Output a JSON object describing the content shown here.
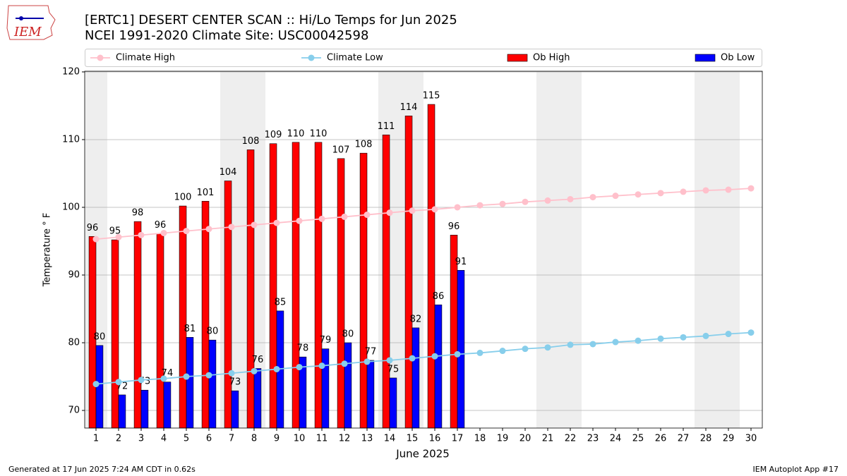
{
  "chart_data": {
    "type": "bar_line",
    "logo": "IEM",
    "title": "[ERTC1] DESERT CENTER SCAN :: Hi/Lo Temps for Jun 2025",
    "subtitle": "NCEI 1991-2020 Climate Site: USC00042598",
    "xlabel": "June 2025",
    "ylabel": "Temperature ° F",
    "footer_left": "Generated at 17 Jun 2025 7:24 AM CDT in 0.62s",
    "footer_right": "IEM Autoplot App #17",
    "x": [
      1,
      2,
      3,
      4,
      5,
      6,
      7,
      8,
      9,
      10,
      11,
      12,
      13,
      14,
      15,
      16,
      17,
      18,
      19,
      20,
      21,
      22,
      23,
      24,
      25,
      26,
      27,
      28,
      29,
      30
    ],
    "xlim": [
      0.5,
      30.5
    ],
    "xticks": [
      1,
      2,
      3,
      4,
      5,
      6,
      7,
      8,
      9,
      10,
      11,
      12,
      13,
      14,
      15,
      16,
      17,
      18,
      19,
      20,
      21,
      22,
      23,
      24,
      25,
      26,
      27,
      28,
      29,
      30
    ],
    "ylim": [
      67.4,
      120.1
    ],
    "yticks": [
      70,
      80,
      90,
      100,
      110,
      120
    ],
    "grid": true,
    "shaded_days": [
      1,
      7,
      8,
      14,
      15,
      21,
      22,
      28,
      29
    ],
    "shade_color": "#eeeeee",
    "series": [
      {
        "name": "Climate High",
        "kind": "line",
        "color": "#ffc0cb",
        "values": [
          95.3,
          95.6,
          95.9,
          96.2,
          96.5,
          96.8,
          97.1,
          97.4,
          97.7,
          98.0,
          98.3,
          98.6,
          98.9,
          99.2,
          99.5,
          99.7,
          100.0,
          100.3,
          100.5,
          100.8,
          101.0,
          101.2,
          101.5,
          101.7,
          101.9,
          102.1,
          102.3,
          102.5,
          102.6,
          102.8
        ]
      },
      {
        "name": "Climate Low",
        "kind": "line",
        "color": "#87ceeb",
        "values": [
          73.9,
          74.2,
          74.5,
          74.7,
          75.0,
          75.2,
          75.5,
          75.8,
          76.1,
          76.4,
          76.6,
          76.9,
          77.2,
          77.4,
          77.7,
          78.0,
          78.3,
          78.5,
          78.8,
          79.1,
          79.3,
          79.7,
          79.8,
          80.1,
          80.3,
          80.6,
          80.8,
          81.0,
          81.3,
          81.5
        ]
      },
      {
        "name": "Ob High",
        "kind": "bar",
        "color": "#ff0000",
        "offset": -1,
        "values": [
          95.7,
          95.2,
          97.9,
          96.1,
          100.2,
          100.9,
          103.9,
          108.5,
          109.4,
          109.6,
          109.6,
          107.2,
          108.0,
          110.7,
          113.5,
          115.2,
          95.9,
          null,
          null,
          null,
          null,
          null,
          null,
          null,
          null,
          null,
          null,
          null,
          null,
          null
        ],
        "value_labels": [
          "96",
          "95",
          "98",
          "96",
          "100",
          "101",
          "104",
          "108",
          "109",
          "110",
          "110",
          "107",
          "108",
          "111",
          "114",
          "115",
          "96",
          null,
          null,
          null,
          null,
          null,
          null,
          null,
          null,
          null,
          null,
          null,
          null,
          null
        ]
      },
      {
        "name": "Ob Low",
        "kind": "bar",
        "color": "#0000ff",
        "offset": 1,
        "values": [
          79.6,
          72.3,
          73.0,
          74.2,
          80.8,
          80.4,
          72.9,
          76.2,
          84.7,
          77.9,
          79.1,
          80.0,
          77.4,
          74.8,
          82.2,
          85.6,
          90.7,
          null,
          null,
          null,
          null,
          null,
          null,
          null,
          null,
          null,
          null,
          null,
          null,
          null
        ],
        "value_labels": [
          "80",
          "72",
          "73",
          "74",
          "81",
          "80",
          "73",
          "76",
          "85",
          "78",
          "79",
          "80",
          "77",
          "75",
          "82",
          "86",
          "91",
          null,
          null,
          null,
          null,
          null,
          null,
          null,
          null,
          null,
          null,
          null,
          null,
          null
        ]
      }
    ]
  }
}
